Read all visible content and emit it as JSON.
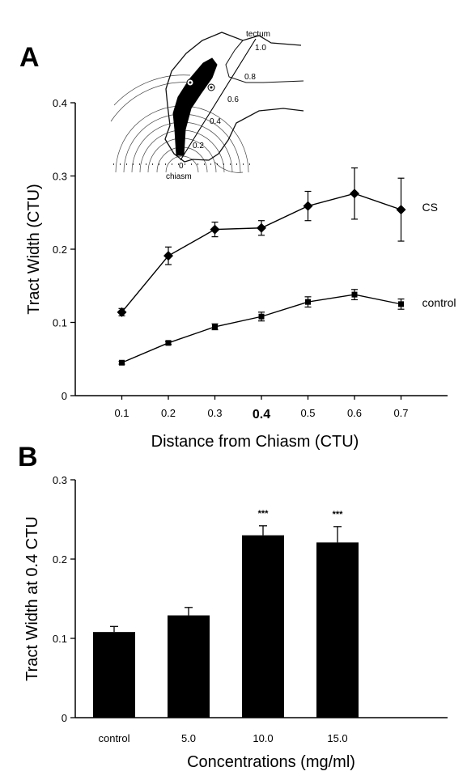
{
  "panels": {
    "a": {
      "letter": "A",
      "inset": {
        "tectum_label": "tectum",
        "chiasm_label": "chiasm",
        "ring_labels": [
          "0",
          "0.2",
          "0.4",
          "0.6",
          "0.8",
          "1.0"
        ]
      }
    },
    "b": {
      "letter": "B"
    }
  },
  "chart_data": [
    {
      "type": "line",
      "xlabel": "Distance from Chiasm (CTU)",
      "ylabel": "Tract Width (CTU)",
      "x": [
        0.1,
        0.2,
        0.3,
        0.4,
        0.5,
        0.6,
        0.7
      ],
      "x_tick_labels": [
        "0.1",
        "0.2",
        "0.3",
        "0.4",
        "0.5",
        "0.6",
        "0.7"
      ],
      "highlighted_x_tick": "0.4",
      "xlim": [
        0,
        0.8
      ],
      "ylim": [
        0,
        0.4
      ],
      "y_ticks": [
        0,
        0.1,
        0.2,
        0.3,
        0.4
      ],
      "y_tick_labels": [
        "0",
        "0.1",
        "0.2",
        "0.3",
        "0.4"
      ],
      "series": [
        {
          "name": "CS",
          "marker": "diamond",
          "values": [
            0.114,
            0.191,
            0.227,
            0.229,
            0.259,
            0.276,
            0.254
          ],
          "errors": [
            0.005,
            0.012,
            0.01,
            0.01,
            0.02,
            0.035,
            0.043
          ]
        },
        {
          "name": "control",
          "marker": "square",
          "values": [
            0.045,
            0.072,
            0.094,
            0.108,
            0.128,
            0.138,
            0.125
          ],
          "errors": [
            0.002,
            0.002,
            0.004,
            0.006,
            0.007,
            0.007,
            0.007
          ]
        }
      ]
    },
    {
      "type": "bar",
      "xlabel": "Concentrations (mg/ml)",
      "ylabel": "Tract Width at 0.4 CTU",
      "categories": [
        "control",
        "5.0",
        "10.0",
        "15.0"
      ],
      "values": [
        0.108,
        0.129,
        0.23,
        0.221
      ],
      "errors": [
        0.007,
        0.01,
        0.012,
        0.02
      ],
      "annotations": [
        "",
        "",
        "***",
        "***"
      ],
      "ylim": [
        0,
        0.3
      ],
      "y_ticks": [
        0,
        0.1,
        0.2,
        0.3
      ],
      "y_tick_labels": [
        "0",
        "0.1",
        "0.2",
        "0.3"
      ],
      "bar_color": "#000000"
    }
  ]
}
